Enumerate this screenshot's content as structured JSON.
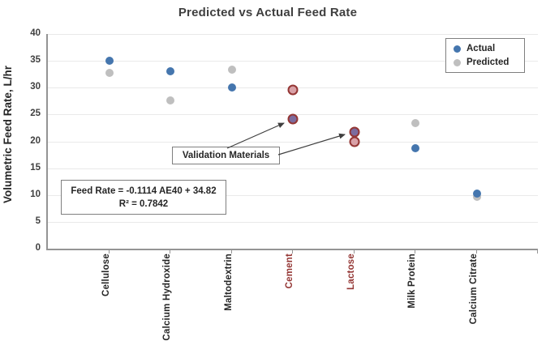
{
  "title": "Predicted vs Actual Feed Rate",
  "y_axis": {
    "label": "Volumetric Feed Rate, L/hr",
    "min": 0,
    "max": 40,
    "tick_step": 5,
    "tick_labels": [
      "0",
      "5",
      "10",
      "15",
      "20",
      "25",
      "30",
      "35",
      "40"
    ]
  },
  "legend": {
    "items": [
      {
        "label": "Actual",
        "key": "actual"
      },
      {
        "label": "Predicted",
        "key": "predicted"
      }
    ]
  },
  "annotations": {
    "validation_label": "Validation Materials",
    "equation_line1": "Feed Rate = -0.1114 AE40 + 34.82",
    "equation_line2": "R² = 0.7842"
  },
  "colors": {
    "actual": "#4576ae",
    "predicted": "#bfbfbf",
    "validation_actual_fill": "#7c6b9d",
    "validation_predicted_fill": "#d9a1a7",
    "validation_ring": "#943634",
    "category_text": "#262626",
    "validation_category_text": "#943634",
    "gridline": "#e9e9e9",
    "axis": "#949494",
    "arrow": "#3f3f3f"
  },
  "chart_data": {
    "type": "scatter",
    "title": "Predicted vs Actual Feed Rate",
    "xlabel": "",
    "ylabel": "Volumetric Feed Rate, L/hr",
    "ylim": [
      0,
      40
    ],
    "yticks": [
      0,
      5,
      10,
      15,
      20,
      25,
      30,
      35,
      40
    ],
    "grid": true,
    "legend_position": "top-right",
    "categories": [
      "Cellulose",
      "Calcium Hydroxide",
      "Maltodextrin",
      "Cement",
      "Lactose",
      "Milk Protein",
      "Calcium Citrate"
    ],
    "validation_indices": [
      3,
      4
    ],
    "validation_categories": [
      "Cement",
      "Lactose"
    ],
    "series": [
      {
        "name": "Predicted",
        "values": [
          32.7,
          27.6,
          33.4,
          29.6,
          19.9,
          23.4,
          9.7
        ]
      },
      {
        "name": "Actual",
        "values": [
          35.0,
          33.0,
          30.0,
          24.2,
          21.8,
          18.7,
          10.3
        ]
      }
    ]
  }
}
